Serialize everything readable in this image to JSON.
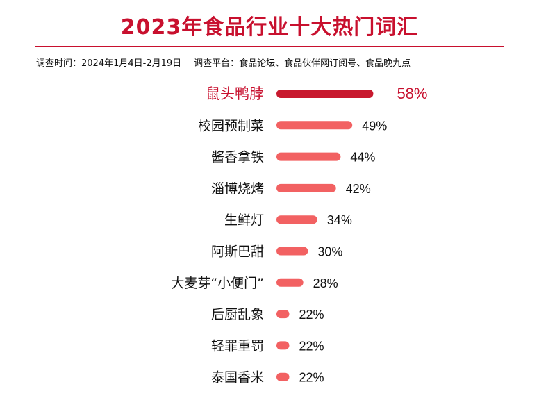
{
  "header": {
    "title": "2023年食品行业十大热门词汇",
    "survey_time_label": "调查时间：",
    "survey_time": "2024年1月4日-2月19日",
    "survey_platform_label": "调查平台：",
    "survey_platform": "食品论坛、食品伙伴网订阅号、食品晚九点"
  },
  "colors": {
    "title": "#c8102e",
    "top_bar": "#c8192e",
    "bar": "#f26162",
    "text": "#111111"
  },
  "chart_data": {
    "type": "bar",
    "orientation": "horizontal",
    "categories": [
      "鼠头鸭脖",
      "校园预制菜",
      "酱香拿铁",
      "淄博烧烤",
      "生鲜灯",
      "阿斯巴甜",
      "大麦芽“小便门”",
      "后厨乱象",
      "轻罪重罚",
      "泰国香米"
    ],
    "values": [
      58,
      49,
      44,
      42,
      34,
      30,
      28,
      22,
      22,
      22
    ],
    "value_labels": [
      "58%",
      "49%",
      "44%",
      "42%",
      "34%",
      "30%",
      "28%",
      "22%",
      "22%",
      "22%"
    ],
    "highlight_index": 0,
    "grid": false
  }
}
